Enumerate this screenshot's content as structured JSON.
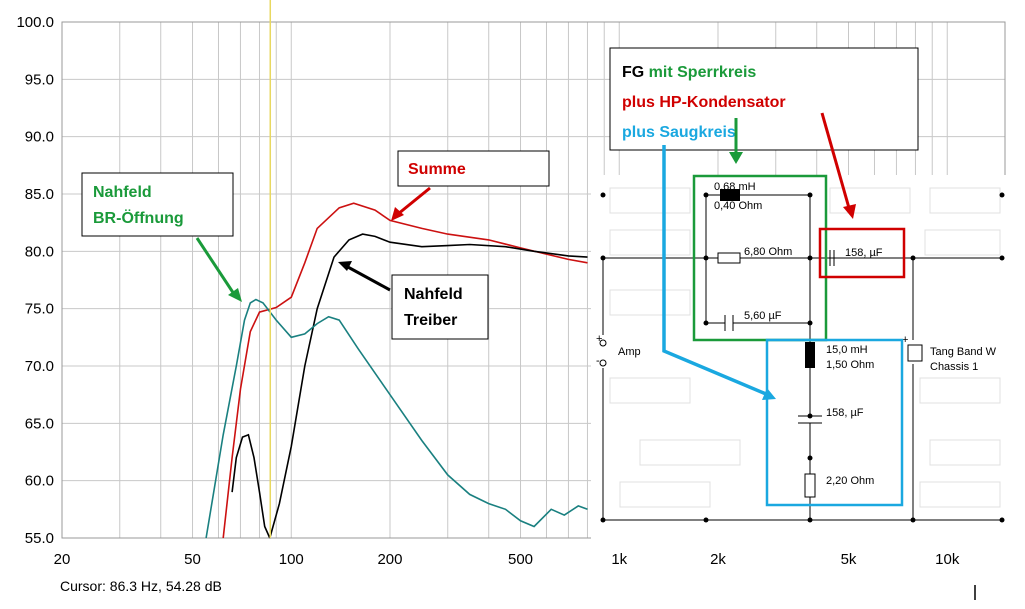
{
  "chart_data": {
    "type": "line",
    "xscale": "log",
    "ylim": [
      55.0,
      100.0
    ],
    "y_ticks": [
      "100.0",
      "95.0",
      "90.0",
      "85.0",
      "80.0",
      "75.0",
      "70.0",
      "65.0",
      "60.0",
      "55.0"
    ],
    "x_ticks": [
      {
        "value": 20,
        "label": "20"
      },
      {
        "value": 50,
        "label": "50"
      },
      {
        "value": 100,
        "label": "100"
      },
      {
        "value": 200,
        "label": "200"
      },
      {
        "value": 500,
        "label": "500"
      },
      {
        "value": 1000,
        "label": "1k"
      },
      {
        "value": 2000,
        "label": "2k"
      },
      {
        "value": 5000,
        "label": "5k"
      },
      {
        "value": 10000,
        "label": "10k"
      }
    ],
    "cursor": {
      "frequency": 86.3,
      "readout": "Cursor: 86.3 Hz, 54.28 dB"
    },
    "series": [
      {
        "color": "#cc1111",
        "points": [
          [
            62,
            55
          ],
          [
            66,
            62
          ],
          [
            70,
            68
          ],
          [
            75,
            73
          ],
          [
            80,
            74.7
          ],
          [
            90,
            75.1
          ],
          [
            100,
            76
          ],
          [
            110,
            79
          ],
          [
            120,
            82
          ],
          [
            140,
            83.8
          ],
          [
            155,
            84.2
          ],
          [
            180,
            83.6
          ],
          [
            200,
            82.7
          ],
          [
            250,
            82
          ],
          [
            300,
            81.5
          ],
          [
            400,
            81
          ],
          [
            500,
            80.3
          ],
          [
            700,
            79.3
          ],
          [
            800,
            79
          ]
        ]
      },
      {
        "color": "#000000",
        "points": [
          [
            86,
            55
          ],
          [
            92,
            58
          ],
          [
            100,
            63
          ],
          [
            110,
            70
          ],
          [
            120,
            75
          ],
          [
            135,
            79.5
          ],
          [
            150,
            81
          ],
          [
            165,
            81.5
          ],
          [
            180,
            81.3
          ],
          [
            200,
            80.8
          ],
          [
            250,
            80.4
          ],
          [
            300,
            80.5
          ],
          [
            350,
            80.6
          ],
          [
            450,
            80.4
          ],
          [
            550,
            80
          ],
          [
            700,
            79.6
          ],
          [
            800,
            79.5
          ]
        ]
      },
      {
        "color": "#1a8080",
        "points": [
          [
            55,
            55
          ],
          [
            62,
            64
          ],
          [
            68,
            70
          ],
          [
            72,
            74
          ],
          [
            75,
            75.5
          ],
          [
            78,
            75.8
          ],
          [
            82,
            75.5
          ],
          [
            90,
            74
          ],
          [
            100,
            72.5
          ],
          [
            110,
            72.8
          ],
          [
            120,
            73.7
          ],
          [
            130,
            74.3
          ],
          [
            140,
            74
          ],
          [
            160,
            71.5
          ],
          [
            200,
            67.5
          ],
          [
            250,
            63.5
          ],
          [
            300,
            60.5
          ],
          [
            350,
            58.8
          ],
          [
            400,
            58
          ],
          [
            450,
            57.5
          ],
          [
            500,
            56.5
          ],
          [
            550,
            56
          ],
          [
            620,
            57.5
          ],
          [
            680,
            57
          ],
          [
            750,
            57.8
          ],
          [
            800,
            57.5
          ]
        ]
      },
      {
        "color": "#000000",
        "points": [
          [
            66,
            59
          ],
          [
            68,
            62
          ],
          [
            71,
            63.8
          ],
          [
            74,
            64
          ],
          [
            77,
            62
          ],
          [
            80,
            59
          ],
          [
            83,
            56
          ],
          [
            86,
            55
          ]
        ]
      }
    ]
  },
  "callouts": {
    "nahfeld_br": {
      "line1": "Nahfeld",
      "line2": "BR-Öffnung",
      "color": "#1a9a3a"
    },
    "summe": {
      "text": "Summe",
      "color": "#d00000"
    },
    "nahfeld_treiber": {
      "line1": "Nahfeld",
      "line2": "Treiber",
      "color": "#000000"
    },
    "legend": {
      "fg": "FG",
      "sperrkreis": "mit Sperrkreis",
      "hp": "plus HP-Kondensator",
      "saugkreis": "plus Saugkreis",
      "fg_color": "#000000",
      "sperrkreis_color": "#1a9a3a",
      "hp_color": "#d00000",
      "saugkreis_color": "#1aa8e0"
    }
  },
  "schematic": {
    "l1_value": "0,68 mH",
    "l1_ohm": "0,40 Ohm",
    "r1": "6,80 Ohm",
    "c1": "5,60 µF",
    "c_hp": "158, µF",
    "amp": "Amp",
    "plus": "+",
    "minus": "-",
    "l2_value": "15,0 mH",
    "l2_ohm": "1,50 Ohm",
    "c2": "158, µF",
    "r2": "2,20 Ohm",
    "driver1": "Tang Band W",
    "driver2": "Chassis 1"
  }
}
